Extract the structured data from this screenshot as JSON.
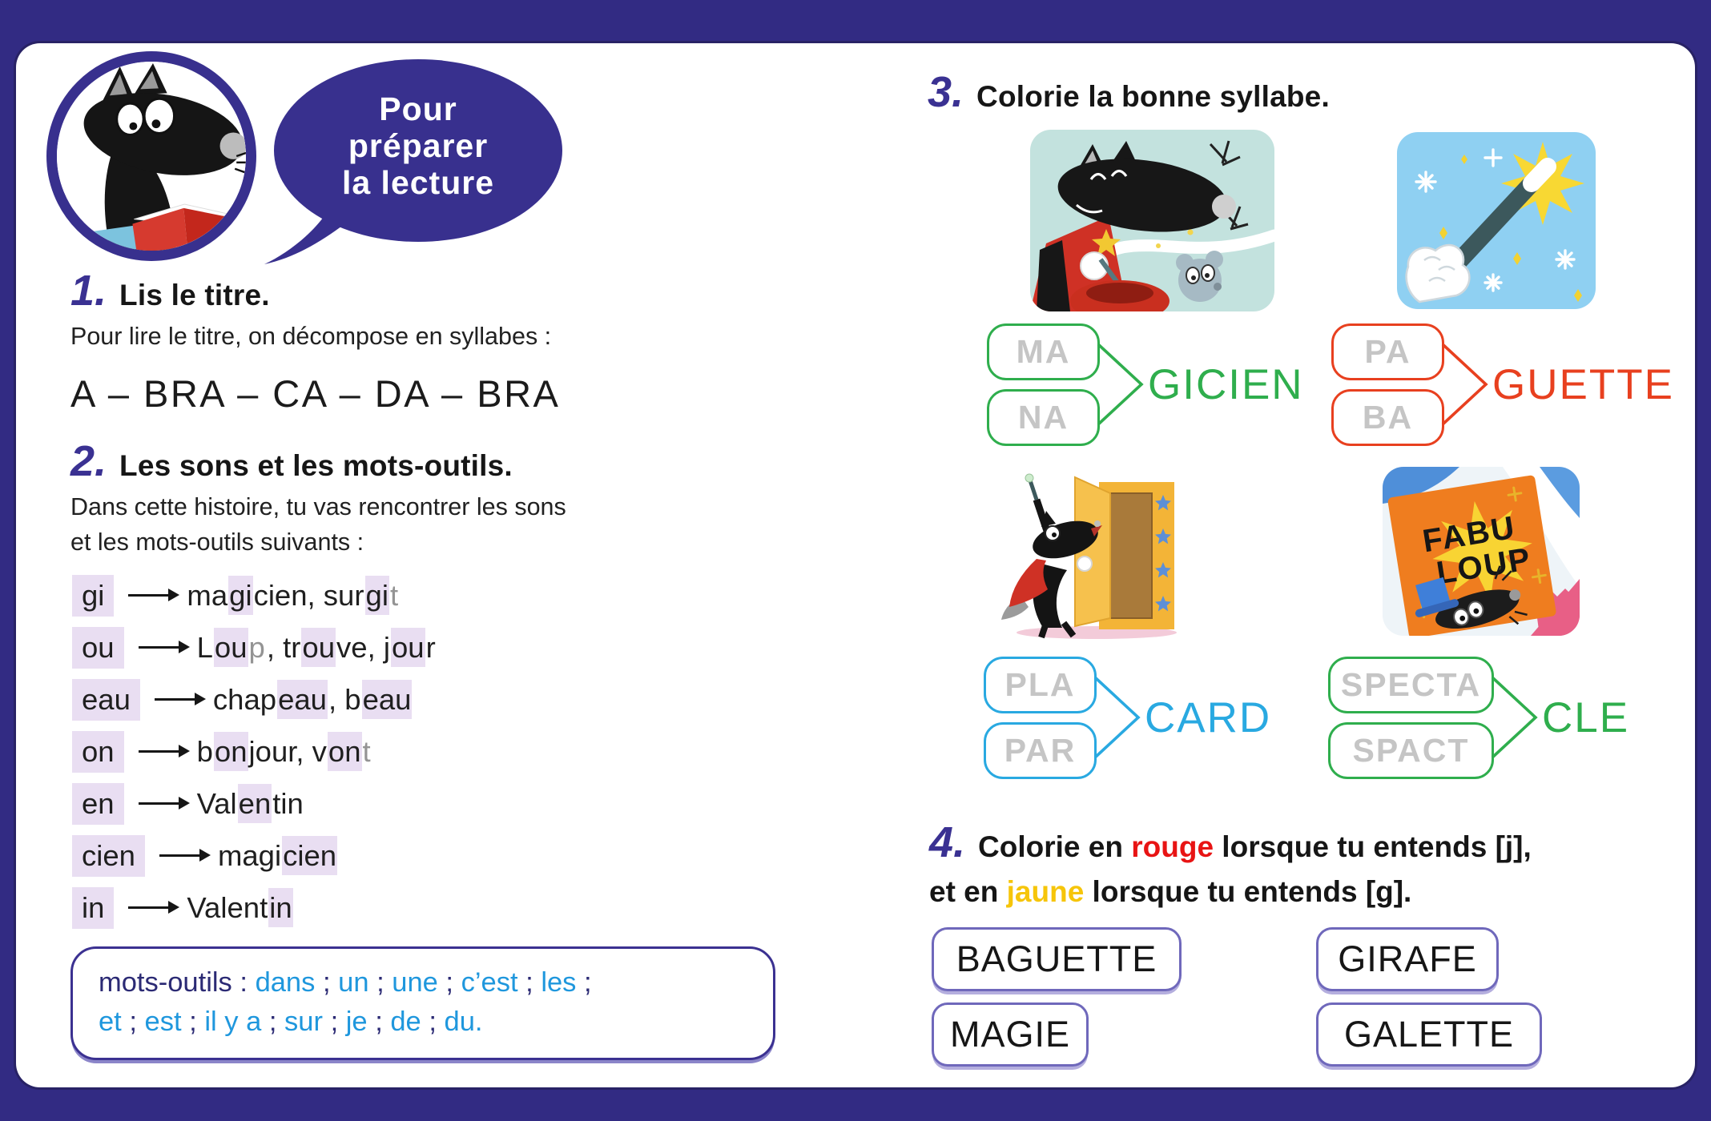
{
  "bubble": {
    "l1": "Pour",
    "l2": "préparer",
    "l3": "la lecture"
  },
  "s1": {
    "num": "1.",
    "title": "Lis le titre.",
    "body": "Pour lire le titre, on décompose en syllabes :",
    "syllables": "A – BRA – CA – DA – BRA"
  },
  "s2": {
    "num": "2.",
    "title": "Les sons et les mots-outils.",
    "body1": "Dans cette histoire, tu vas rencontrer les sons",
    "body2": "et les mots-outils suivants :",
    "rows": [
      {
        "key": "gi",
        "segments": [
          {
            "t": "ma"
          },
          {
            "t": "gi",
            "h": 1
          },
          {
            "t": "cien, sur"
          },
          {
            "t": "gi",
            "h": 1
          },
          {
            "t": "t",
            "g": 1
          }
        ]
      },
      {
        "key": "ou",
        "segments": [
          {
            "t": "L"
          },
          {
            "t": "ou",
            "h": 1
          },
          {
            "t": "p",
            "g": 1
          },
          {
            "t": ", tr"
          },
          {
            "t": "ou",
            "h": 1
          },
          {
            "t": "ve, j"
          },
          {
            "t": "ou",
            "h": 1
          },
          {
            "t": "r"
          }
        ]
      },
      {
        "key": "eau",
        "segments": [
          {
            "t": "chap"
          },
          {
            "t": "eau",
            "h": 1
          },
          {
            "t": ", b"
          },
          {
            "t": "eau",
            "h": 1
          }
        ]
      },
      {
        "key": "on",
        "segments": [
          {
            "t": "b"
          },
          {
            "t": "on",
            "h": 1
          },
          {
            "t": "jour, v"
          },
          {
            "t": "on",
            "h": 1
          },
          {
            "t": "t",
            "g": 1
          }
        ]
      },
      {
        "key": "en",
        "segments": [
          {
            "t": "Val"
          },
          {
            "t": "en",
            "h": 1
          },
          {
            "t": "tin"
          }
        ]
      },
      {
        "key": "cien",
        "segments": [
          {
            "t": "magi"
          },
          {
            "t": "cien",
            "h": 1
          }
        ]
      },
      {
        "key": "in",
        "segments": [
          {
            "t": "Valent"
          },
          {
            "t": "in",
            "h": 1
          }
        ]
      }
    ],
    "mots": {
      "lines": [
        [
          {
            "t": "mots-outils",
            "c": "n"
          },
          {
            "t": " : ",
            "c": "n"
          },
          {
            "t": "dans",
            "c": "b"
          },
          {
            "t": " ; ",
            "c": "n"
          },
          {
            "t": "un",
            "c": "b"
          },
          {
            "t": " ; ",
            "c": "n"
          },
          {
            "t": "une",
            "c": "b"
          },
          {
            "t": " ; ",
            "c": "n"
          },
          {
            "t": "c’est",
            "c": "b"
          },
          {
            "t": " ; ",
            "c": "n"
          },
          {
            "t": "les",
            "c": "b"
          },
          {
            "t": " ;",
            "c": "n"
          }
        ],
        [
          {
            "t": "et",
            "c": "b"
          },
          {
            "t": " ; ",
            "c": "n"
          },
          {
            "t": "est",
            "c": "b"
          },
          {
            "t": " ; ",
            "c": "n"
          },
          {
            "t": "il y a",
            "c": "b"
          },
          {
            "t": " ; ",
            "c": "n"
          },
          {
            "t": "sur",
            "c": "b"
          },
          {
            "t": " ; ",
            "c": "n"
          },
          {
            "t": "je",
            "c": "b"
          },
          {
            "t": " ; ",
            "c": "n"
          },
          {
            "t": "de",
            "c": "b"
          },
          {
            "t": " ; ",
            "c": "n"
          },
          {
            "t": "du.",
            "c": "b"
          }
        ]
      ]
    }
  },
  "s3": {
    "num": "3.",
    "title": "Colorie la bonne syllabe.",
    "groups": [
      {
        "options": [
          "MA",
          "NA"
        ],
        "word": "GICIEN",
        "color": "#2fae4d"
      },
      {
        "options": [
          "PA",
          "BA"
        ],
        "word": "GUETTE",
        "color": "#e8401f"
      },
      {
        "options": [
          "PLA",
          "PAR"
        ],
        "word": "CARD",
        "color": "#29a9e1"
      },
      {
        "options": [
          "SPECTA",
          "SPACT"
        ],
        "word": "CLE",
        "color": "#2fae4d"
      }
    ],
    "images": [
      "wolf-magician",
      "magic-wand",
      "wolf-cupboard",
      "fabuloup-poster"
    ],
    "poster_text": {
      "line1": "FABU",
      "line2": "LOUP"
    }
  },
  "s4": {
    "num": "4.",
    "lines": [
      [
        {
          "t": "Colorie en ",
          "c": "k"
        },
        {
          "t": "rouge",
          "c": "r"
        },
        {
          "t": " lorsque tu entends [j],",
          "c": "k"
        }
      ],
      [
        {
          "t": "et en ",
          "c": "k"
        },
        {
          "t": "jaune",
          "c": "y"
        },
        {
          "t": " lorsque tu entends [g].",
          "c": "k"
        }
      ]
    ],
    "words": [
      "BAGUETTE",
      "GIRAFE",
      "MAGIE",
      "GALETTE"
    ]
  },
  "colors": {
    "frame_navy": "#322b83",
    "accent_navy": "#3a3192",
    "highlight_lavender": "#e9def2",
    "green": "#2fae4d",
    "red": "#e8401f",
    "blue": "#29a9e1",
    "mots_blue": "#1f97dd",
    "word_box_purple": "#6f68bb",
    "rouge_text": "#e81414",
    "jaune_text": "#f6c50a"
  }
}
